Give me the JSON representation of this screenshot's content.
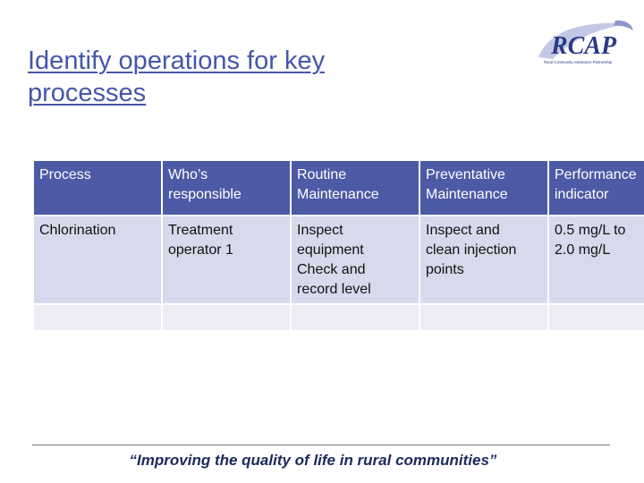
{
  "slide": {
    "title": "Identify operations for key processes",
    "logo_text": "RCAP",
    "logo_subtext": "Rural Community Assistance Partnership",
    "tagline": "“Improving the quality of life in rural communities”"
  },
  "table": {
    "headers": [
      [
        "Process"
      ],
      [
        "Who’s",
        "responsible"
      ],
      [
        "Routine",
        "Maintenance"
      ],
      [
        "Preventative",
        "Maintenance"
      ],
      [
        "Performance",
        "indicator"
      ]
    ],
    "rows": [
      [
        [
          "Chlorination"
        ],
        [
          "Treatment",
          "operator 1"
        ],
        [
          "Inspect",
          "equipment",
          "Check and",
          "record level"
        ],
        [
          "Inspect and",
          "clean injection",
          "points"
        ],
        [
          "0.5 mg/L to",
          "2.0 mg/L"
        ]
      ],
      [
        [
          ""
        ],
        [
          ""
        ],
        [
          ""
        ],
        [
          ""
        ],
        [
          ""
        ]
      ]
    ]
  },
  "colors": {
    "title": "#4557a8",
    "header_bg": "#4d5aa6",
    "row1_bg": "#d7d9ec",
    "row2_bg": "#ececf5",
    "tagline": "#1a2a5c"
  }
}
